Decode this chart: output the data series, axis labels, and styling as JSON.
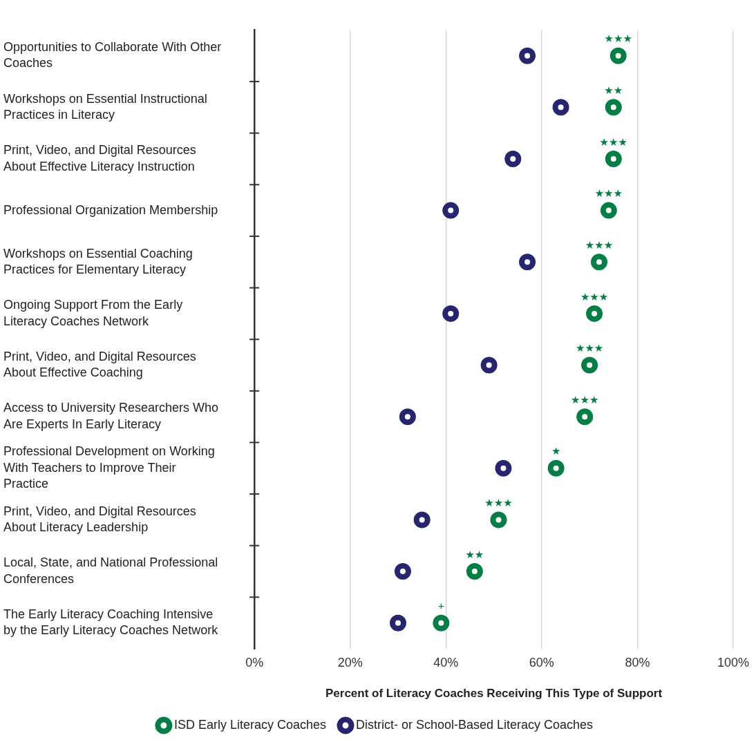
{
  "chart_data": {
    "type": "scatter",
    "orientation": "horizontal",
    "xlabel": "Percent of Literacy Coaches Receiving This Type of Support",
    "categories": [
      "Opportunities to Collaborate With Other Coaches",
      "Workshops on Essential Instructional Practices in Literacy",
      "Print, Video, and Digital Resources About Effective Literacy Instruction",
      "Professional Organization Membership",
      "Workshops on Essential Coaching Practices for Elementary Literacy",
      "Ongoing Support From the Early Literacy Coaches Network",
      "Print, Video, and Digital Resources About Effective Coaching",
      "Access to University Researchers Who Are Experts In Early Literacy",
      "Professional Development on Working With Teachers to Improve Their Practice",
      "Print, Video, and Digital Resources About Literacy Leadership",
      "Local, State, and National Professional Conferences",
      "The Early Literacy Coaching Intensive by the Early Literacy Coaches Network"
    ],
    "series": [
      {
        "name": "ISD Early Literacy Coaches",
        "color": "#037e44",
        "values": [
          76,
          75,
          75,
          74,
          72,
          71,
          70,
          69,
          63,
          51,
          46,
          39
        ]
      },
      {
        "name": "District- or School-Based Literacy Coaches",
        "color": "#25266d",
        "values": [
          57,
          64,
          54,
          41,
          57,
          41,
          49,
          32,
          52,
          35,
          31,
          30
        ]
      }
    ],
    "xlim": [
      0,
      100
    ],
    "xticks": [
      {
        "value": 0,
        "label": "0%"
      },
      {
        "value": 20,
        "label": "20%"
      },
      {
        "value": 40,
        "label": "40%"
      },
      {
        "value": 60,
        "label": "60%"
      },
      {
        "value": 80,
        "label": "80%"
      },
      {
        "value": 100,
        "label": "100%"
      }
    ],
    "grid": "x",
    "legend": "bottom",
    "marker": "circle",
    "annotations": [
      {
        "text": "★★★",
        "x": 76,
        "y": "Opportunities to Collaborate With Other Coaches"
      },
      {
        "text": "★★",
        "x": 75,
        "y": "Workshops on Essential Instructional Practices in Literacy"
      },
      {
        "text": "★★★",
        "x": 75,
        "y": "Print, Video, and Digital Resources About Effective Literacy Instruction"
      },
      {
        "text": "★★★",
        "x": 74,
        "y": "Professional Organization Membership"
      },
      {
        "text": "★★★",
        "x": 72,
        "y": "Workshops on Essential Coaching Practices for Elementary Literacy"
      },
      {
        "text": "★★★",
        "x": 71,
        "y": "Ongoing Support From the Early Literacy Coaches Network"
      },
      {
        "text": "★★★",
        "x": 70,
        "y": "Print, Video, and Digital Resources About Effective Coaching"
      },
      {
        "text": "★★★",
        "x": 69,
        "y": "Access to University Researchers Who Are Experts In Early Literacy"
      },
      {
        "text": "★",
        "x": 63,
        "y": "Professional Development on Working With Teachers to Improve Their Practice"
      },
      {
        "text": "★★★",
        "x": 51,
        "y": "Print, Video, and Digital Resources About Literacy Leadership"
      },
      {
        "text": "★★",
        "x": 46,
        "y": "Local, State, and National Professional Conferences"
      },
      {
        "text": "+",
        "x": 39,
        "y": "The Early Literacy Coaching Intensive by the Early Literacy Coaches Network"
      }
    ]
  }
}
